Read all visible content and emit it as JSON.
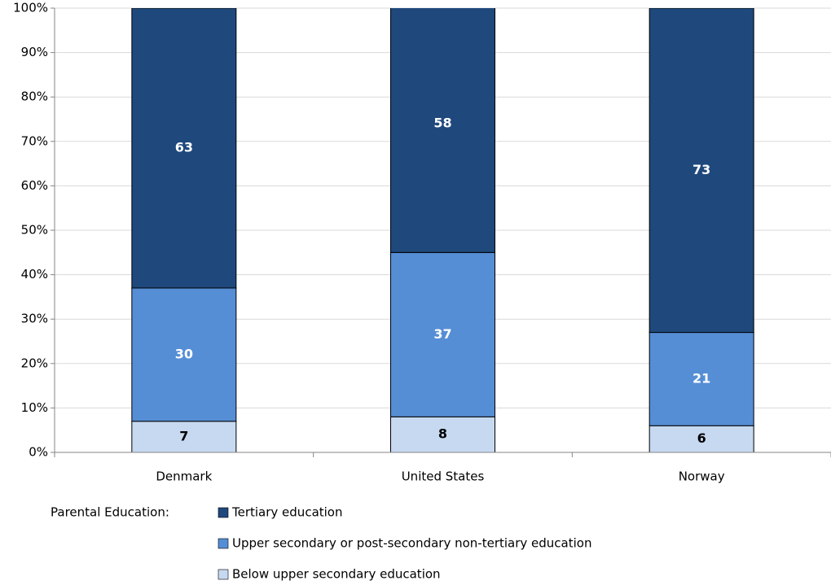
{
  "chart_data": {
    "type": "stacked-bar",
    "categories": [
      "Denmark",
      "United States",
      "Norway"
    ],
    "series": [
      {
        "name": "Below upper secondary education",
        "color": "#c6d9f1",
        "values": [
          7,
          8,
          6
        ]
      },
      {
        "name": "Upper secondary or post-secondary non-tertiary education",
        "color": "#558ed5",
        "values": [
          30,
          37,
          21
        ]
      },
      {
        "name": "Tertiary education",
        "color": "#1f497d",
        "values": [
          63,
          58,
          73
        ]
      }
    ],
    "legend_title": "Parental Education:",
    "ylim": [
      0,
      100
    ],
    "yticks": [
      {
        "value": 0,
        "label": "0%"
      },
      {
        "value": 10,
        "label": "10%"
      },
      {
        "value": 20,
        "label": "20%"
      },
      {
        "value": 30,
        "label": "30%"
      },
      {
        "value": 40,
        "label": "40%"
      },
      {
        "value": 50,
        "label": "50%"
      },
      {
        "value": 60,
        "label": "60%"
      },
      {
        "value": 70,
        "label": "70%"
      },
      {
        "value": 80,
        "label": "80%"
      },
      {
        "value": 90,
        "label": "90%"
      },
      {
        "value": 100,
        "label": "100%"
      }
    ],
    "grid": true
  }
}
